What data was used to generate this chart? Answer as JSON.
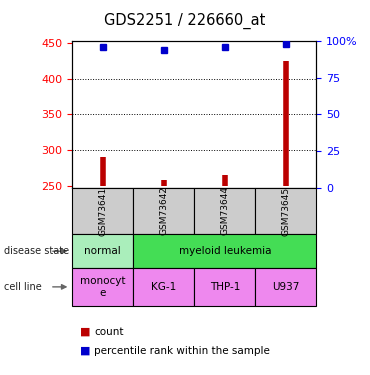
{
  "title": "GDS2251 / 226660_at",
  "samples": [
    "GSM73641",
    "GSM73642",
    "GSM73644",
    "GSM73645"
  ],
  "count_values": [
    290,
    258,
    265,
    425
  ],
  "percentile_values": [
    96,
    94,
    96,
    98
  ],
  "ylim_left": [
    248,
    452
  ],
  "ylim_right": [
    0,
    100
  ],
  "yticks_left": [
    250,
    300,
    350,
    400,
    450
  ],
  "yticks_right": [
    0,
    25,
    50,
    75,
    100
  ],
  "ytick_labels_right": [
    "0",
    "25",
    "50",
    "75",
    "100%"
  ],
  "bar_color": "#bb0000",
  "dot_color": "#0000cc",
  "baseline": 250,
  "grid_yticks": [
    300,
    350,
    400
  ],
  "legend_count_label": "count",
  "legend_pct_label": "percentile rank within the sample",
  "row_label_disease": "disease state",
  "row_label_cell": "cell line",
  "sample_box_color": "#cccccc",
  "disease_normal_color": "#aaeebb",
  "disease_leukemia_color": "#44dd55",
  "cell_line_color": "#ee88ee"
}
